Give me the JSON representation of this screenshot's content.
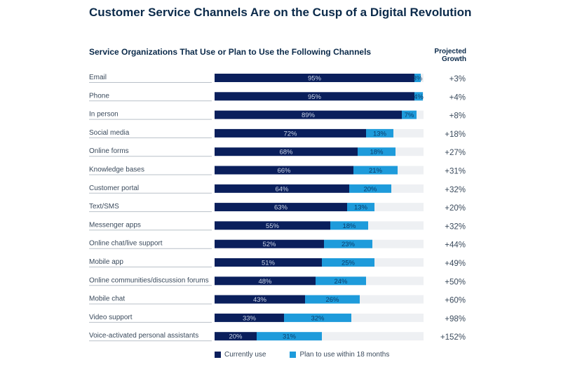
{
  "title": "Customer Service Channels Are on the Cusp of a Digital Revolution",
  "subtitle": "Service Organizations That Use or Plan to Use the Following Channels",
  "growth_header_line1": "Projected",
  "growth_header_line2": "Growth",
  "colors": {
    "current": "#0a1f5c",
    "plan": "#1e9bdb",
    "track": "#eef0f3"
  },
  "legend": {
    "current_label": "Currently use",
    "plan_label": "Plan to use within 18 months"
  },
  "chart_data": {
    "type": "bar",
    "orientation": "horizontal",
    "stacked": true,
    "title": "Service Organizations That Use or Plan to Use the Following Channels",
    "xlim": [
      0,
      100
    ],
    "categories": [
      "Email",
      "Phone",
      "In person",
      "Social media",
      "Online forms",
      "Knowledge bases",
      "Customer portal",
      "Text/SMS",
      "Messenger apps",
      "Online chat/live support",
      "Mobile app",
      "Online communities/discussion forums",
      "Mobile chat",
      "Video support",
      "Voice-activated personal assistants"
    ],
    "series": [
      {
        "name": "Currently use",
        "values": [
          95,
          95,
          89,
          72,
          68,
          66,
          64,
          63,
          55,
          52,
          51,
          48,
          43,
          33,
          20
        ],
        "labels": [
          "95%",
          "95%",
          "89%",
          "72%",
          "68%",
          "66%",
          "64%",
          "63%",
          "55%",
          "52%",
          "51%",
          "48%",
          "43%",
          "33%",
          "20%"
        ]
      },
      {
        "name": "Plan to use within 18 months",
        "values": [
          3,
          4,
          7,
          13,
          18,
          21,
          20,
          13,
          18,
          23,
          25,
          24,
          26,
          32,
          31
        ],
        "labels": [
          "3%",
          "4%",
          "7%",
          "13%",
          "18%",
          "21%",
          "20%",
          "13%",
          "18%",
          "23%",
          "25%",
          "24%",
          "26%",
          "32%",
          "31%"
        ]
      }
    ],
    "projected_growth": [
      "+3%",
      "+4%",
      "+8%",
      "+18%",
      "+27%",
      "+31%",
      "+32%",
      "+20%",
      "+32%",
      "+44%",
      "+49%",
      "+50%",
      "+60%",
      "+98%",
      "+152%"
    ],
    "legend_position": "bottom"
  }
}
